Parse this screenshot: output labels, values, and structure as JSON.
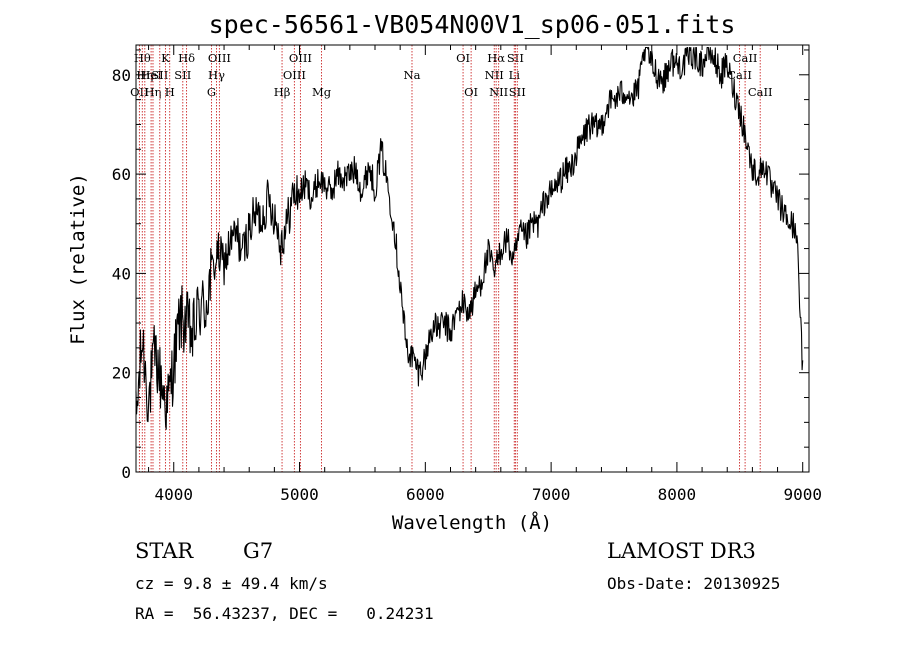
{
  "chart_data": {
    "type": "line",
    "title": "spec-56561-VB054N00V1_sp06-051.fits",
    "xlabel": "Wavelength (Å)",
    "ylabel": "Flux (relative)",
    "xlim": [
      3700,
      9050
    ],
    "ylim": [
      0,
      86
    ],
    "xticks": [
      {
        "v": 4000,
        "label": "4000"
      },
      {
        "v": 5000,
        "label": "5000"
      },
      {
        "v": 6000,
        "label": "6000"
      },
      {
        "v": 7000,
        "label": "7000"
      },
      {
        "v": 8000,
        "label": "8000"
      },
      {
        "v": 9000,
        "label": "9000"
      }
    ],
    "yticks": [
      {
        "v": 0,
        "label": "0"
      },
      {
        "v": 20,
        "label": "20"
      },
      {
        "v": 40,
        "label": "40"
      },
      {
        "v": 60,
        "label": "60"
      },
      {
        "v": 80,
        "label": "80"
      }
    ],
    "spectrum": {
      "name": "flux",
      "x": [
        3700,
        3750,
        3800,
        3850,
        3900,
        3950,
        4000,
        4050,
        4100,
        4150,
        4200,
        4250,
        4300,
        4350,
        4400,
        4450,
        4500,
        4550,
        4600,
        4650,
        4700,
        4750,
        4800,
        4850,
        4900,
        4950,
        5000,
        5050,
        5100,
        5150,
        5200,
        5250,
        5300,
        5350,
        5400,
        5450,
        5500,
        5550,
        5600,
        5650,
        5700,
        5750,
        5800,
        5850,
        5900,
        5950,
        6000,
        6050,
        6100,
        6150,
        6200,
        6250,
        6300,
        6350,
        6400,
        6450,
        6500,
        6550,
        6600,
        6650,
        6700,
        6750,
        6800,
        6850,
        6900,
        6950,
        7000,
        7050,
        7100,
        7150,
        7200,
        7250,
        7300,
        7350,
        7400,
        7450,
        7500,
        7550,
        7600,
        7650,
        7700,
        7750,
        7800,
        7850,
        7900,
        7950,
        8000,
        8050,
        8100,
        8150,
        8200,
        8250,
        8300,
        8350,
        8400,
        8450,
        8500,
        8550,
        8600,
        8650,
        8700,
        8750,
        8800,
        8850,
        8900,
        8950,
        9000
      ],
      "y": [
        10,
        27,
        14,
        24,
        18,
        13,
        22,
        31,
        30,
        27,
        33,
        33,
        40,
        44,
        42,
        46,
        48,
        44,
        49,
        52,
        51,
        55,
        52,
        46,
        50,
        56,
        56,
        58,
        55,
        59,
        58,
        56,
        60,
        59,
        60,
        61,
        56,
        62,
        57,
        65,
        58,
        50,
        38,
        25,
        23,
        20,
        23,
        29,
        29,
        30,
        28,
        32,
        34,
        32,
        36,
        39,
        44,
        40,
        45,
        47,
        42,
        48,
        47,
        50,
        50,
        55,
        56,
        58,
        60,
        61,
        64,
        67,
        70,
        69,
        70,
        74,
        75,
        76,
        77,
        75,
        78,
        86,
        82,
        80,
        79,
        83,
        82,
        82,
        84,
        84,
        82,
        85,
        83,
        80,
        82,
        77,
        73,
        67,
        61,
        60,
        62,
        57,
        55,
        52,
        50,
        49,
        20
      ]
    },
    "lines": [
      {
        "x": 3727,
        "label": "OII",
        "row": 3
      },
      {
        "x": 3750,
        "label": "Hθ",
        "row": 1
      },
      {
        "x": 3770,
        "label": "Hη",
        "row": 2
      },
      {
        "x": 3820,
        "label": "HeI",
        "row": 2
      },
      {
        "x": 3835,
        "label": "Hη",
        "row": 3
      },
      {
        "x": 3889,
        "label": "SII",
        "row": 2
      },
      {
        "x": 3934,
        "label": "K",
        "row": 1
      },
      {
        "x": 3968,
        "label": "H",
        "row": 3
      },
      {
        "x": 4072,
        "label": "SII",
        "row": 2
      },
      {
        "x": 4102,
        "label": "Hδ",
        "row": 1
      },
      {
        "x": 4300,
        "label": "G",
        "row": 3
      },
      {
        "x": 4340,
        "label": "Hγ",
        "row": 2
      },
      {
        "x": 4363,
        "label": "OIII",
        "row": 1
      },
      {
        "x": 4861,
        "label": "Hβ",
        "row": 3
      },
      {
        "x": 4959,
        "label": "OIII",
        "row": 2
      },
      {
        "x": 5007,
        "label": "OIII",
        "row": 1
      },
      {
        "x": 5175,
        "label": "Mg",
        "row": 3
      },
      {
        "x": 5894,
        "label": "Na",
        "row": 2
      },
      {
        "x": 6300,
        "label": "OI",
        "row": 1
      },
      {
        "x": 6364,
        "label": "OI",
        "row": 3
      },
      {
        "x": 6548,
        "label": "NII",
        "row": 2
      },
      {
        "x": 6563,
        "label": "Hα",
        "row": 1
      },
      {
        "x": 6583,
        "label": "NII",
        "row": 3
      },
      {
        "x": 6707,
        "label": "Li",
        "row": 2
      },
      {
        "x": 6716,
        "label": "SII",
        "row": 1
      },
      {
        "x": 6731,
        "label": "SII",
        "row": 3
      },
      {
        "x": 8498,
        "label": "CaII",
        "row": 2
      },
      {
        "x": 8542,
        "label": "CaII",
        "row": 1
      },
      {
        "x": 8662,
        "label": "CaII",
        "row": 3
      }
    ]
  },
  "info": {
    "object_class": "STAR",
    "subclass": "G7",
    "survey": "LAMOST DR3",
    "redshift": "cz = 9.8 ± 49.4 km/s",
    "obs_date": "Obs-Date: 20130925",
    "coords": "RA =  56.43237, DEC =   0.24231"
  }
}
